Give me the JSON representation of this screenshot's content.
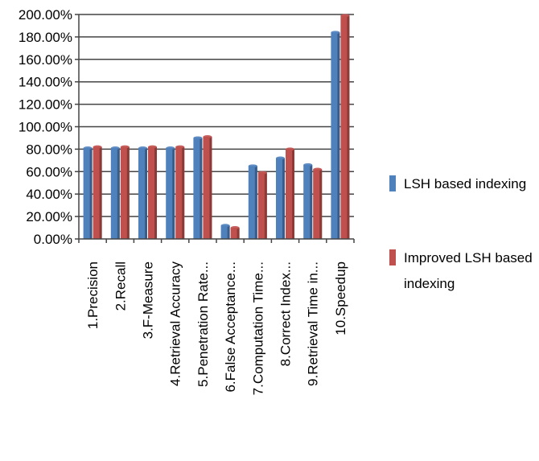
{
  "chart_data": {
    "type": "bar",
    "categories": [
      "1.Precision",
      "2.Recall",
      "3.F-Measure",
      "4.Retrieval Accuracy",
      "5.Penetration Rate...",
      "6.False Acceptance...",
      "7.Computation Time...",
      "8.Correct Index...",
      "9.Retrieval Time in...",
      "10.Speedup"
    ],
    "series": [
      {
        "name": "LSH based indexing",
        "color": "#4f81bd",
        "values": [
          81,
          81,
          81,
          81,
          90,
          12,
          65,
          72,
          66,
          184
        ]
      },
      {
        "name": "Improved LSH based indexing",
        "color": "#c0504d",
        "values": [
          82,
          82,
          82,
          82,
          91,
          10,
          59,
          80,
          62,
          199
        ]
      }
    ],
    "yticks": [
      "0.00%",
      "20.00%",
      "40.00%",
      "60.00%",
      "80.00%",
      "100.00%",
      "120.00%",
      "140.00%",
      "160.00%",
      "180.00%",
      "200.00%"
    ],
    "ylim": [
      0,
      200
    ],
    "grid": true,
    "legend_position": "right",
    "legend_lines": [
      [
        "LSH based indexing"
      ],
      [
        "Improved LSH based",
        "indexing"
      ]
    ]
  }
}
